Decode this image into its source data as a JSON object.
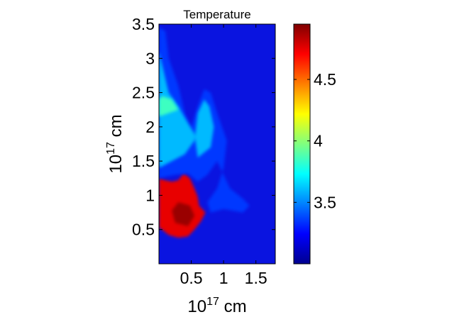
{
  "chart_data": {
    "type": "heatmap",
    "title": "Temperature",
    "xlabel": {
      "base": "10",
      "exponent": "17",
      "unit": "cm"
    },
    "ylabel": {
      "base": "10",
      "exponent": "17",
      "unit": "cm"
    },
    "xlim": [
      0,
      1.8
    ],
    "ylim": [
      0,
      3.5
    ],
    "xticks": [
      {
        "value": 0.5,
        "label": "0.5"
      },
      {
        "value": 1.0,
        "label": "1"
      },
      {
        "value": 1.5,
        "label": "1.5"
      }
    ],
    "yticks": [
      {
        "value": 0.5,
        "label": "0.5"
      },
      {
        "value": 1.0,
        "label": "1"
      },
      {
        "value": 1.5,
        "label": "1.5"
      },
      {
        "value": 2.0,
        "label": "2"
      },
      {
        "value": 2.5,
        "label": "2.5"
      },
      {
        "value": 3.0,
        "label": "3"
      },
      {
        "value": 3.5,
        "label": "3.5"
      }
    ],
    "colorbar": {
      "min": 3.0,
      "max": 4.95,
      "colormap": "jet",
      "ticks": [
        {
          "value": 3.5,
          "label": "3.5"
        },
        {
          "value": 4.0,
          "label": "4"
        },
        {
          "value": 4.5,
          "label": "4.5"
        }
      ]
    },
    "background_value": 3.0,
    "regions": [
      {
        "name": "hot-clump",
        "value": 4.75,
        "outline": [
          [
            0.02,
            0.52
          ],
          [
            0.15,
            0.42
          ],
          [
            0.3,
            0.38
          ],
          [
            0.45,
            0.4
          ],
          [
            0.55,
            0.5
          ],
          [
            0.65,
            0.62
          ],
          [
            0.72,
            0.75
          ],
          [
            0.62,
            0.85
          ],
          [
            0.6,
            0.98
          ],
          [
            0.55,
            1.1
          ],
          [
            0.48,
            1.25
          ],
          [
            0.38,
            1.32
          ],
          [
            0.3,
            1.22
          ],
          [
            0.2,
            1.2
          ],
          [
            0.1,
            1.22
          ],
          [
            0.0,
            1.25
          ],
          [
            0.0,
            0.52
          ]
        ]
      },
      {
        "name": "hot-core",
        "value": 4.9,
        "outline": [
          [
            0.25,
            0.6
          ],
          [
            0.45,
            0.55
          ],
          [
            0.55,
            0.7
          ],
          [
            0.48,
            0.85
          ],
          [
            0.3,
            0.9
          ],
          [
            0.2,
            0.78
          ]
        ]
      },
      {
        "name": "diffuse-shell",
        "value": 3.35,
        "outline": [
          [
            0.0,
            1.25
          ],
          [
            0.25,
            1.3
          ],
          [
            0.45,
            1.32
          ],
          [
            0.6,
            1.2
          ],
          [
            0.75,
            1.3
          ],
          [
            0.9,
            1.5
          ],
          [
            1.0,
            1.3
          ],
          [
            1.1,
            1.1
          ],
          [
            1.3,
            0.95
          ],
          [
            1.4,
            0.85
          ],
          [
            1.3,
            0.75
          ],
          [
            1.0,
            0.8
          ],
          [
            0.8,
            0.75
          ],
          [
            0.75,
            0.9
          ],
          [
            0.9,
            1.1
          ],
          [
            1.0,
            1.4
          ],
          [
            1.05,
            1.8
          ],
          [
            0.9,
            2.2
          ],
          [
            0.8,
            2.5
          ],
          [
            0.7,
            2.55
          ],
          [
            0.6,
            2.3
          ],
          [
            0.5,
            2.0
          ],
          [
            0.4,
            2.2
          ],
          [
            0.3,
            2.6
          ],
          [
            0.15,
            3.0
          ],
          [
            0.1,
            3.4
          ],
          [
            0.0,
            3.45
          ]
        ]
      },
      {
        "name": "warm-filament",
        "value": 3.6,
        "outline": [
          [
            0.0,
            1.4
          ],
          [
            0.2,
            1.5
          ],
          [
            0.4,
            1.6
          ],
          [
            0.55,
            1.8
          ],
          [
            0.6,
            2.2
          ],
          [
            0.7,
            2.4
          ],
          [
            0.78,
            2.3
          ],
          [
            0.85,
            2.0
          ],
          [
            0.8,
            1.7
          ],
          [
            0.6,
            1.55
          ],
          [
            0.55,
            1.9
          ],
          [
            0.45,
            2.05
          ],
          [
            0.3,
            2.3
          ],
          [
            0.15,
            2.5
          ],
          [
            0.05,
            2.9
          ],
          [
            0.0,
            3.1
          ]
        ]
      },
      {
        "name": "warm-patch",
        "value": 3.85,
        "outline": [
          [
            0.0,
            2.15
          ],
          [
            0.15,
            2.2
          ],
          [
            0.3,
            2.25
          ],
          [
            0.2,
            2.4
          ],
          [
            0.05,
            2.45
          ],
          [
            0.0,
            2.4
          ]
        ]
      }
    ]
  }
}
